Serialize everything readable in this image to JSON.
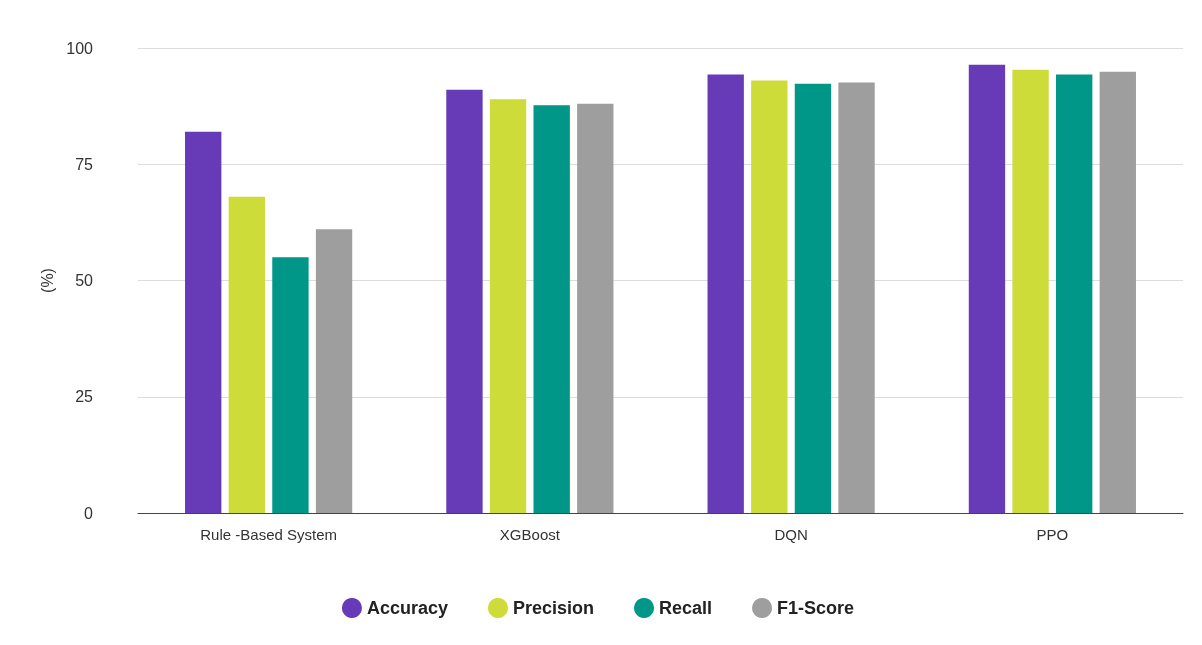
{
  "chart_data": {
    "type": "bar",
    "ylabel": "(%)",
    "categories": [
      "Rule -Based System",
      "XGBoost",
      "DQN",
      "PPO"
    ],
    "series": [
      {
        "name": "Accuracy",
        "color": "#673ab7",
        "values": [
          82,
          91,
          94.3,
          96.4
        ]
      },
      {
        "name": "Precision",
        "color": "#cddc39",
        "values": [
          68,
          89,
          93,
          95.3
        ]
      },
      {
        "name": "Recall",
        "color": "#009688",
        "values": [
          55,
          87.7,
          92.3,
          94.3
        ]
      },
      {
        "name": "F1-Score",
        "color": "#9e9e9e",
        "values": [
          61,
          88,
          92.6,
          94.9
        ]
      }
    ],
    "ylim": [
      0,
      100
    ],
    "yticks": [
      0,
      25,
      50,
      75,
      100
    ],
    "grid": "y",
    "legend": "bottom"
  }
}
